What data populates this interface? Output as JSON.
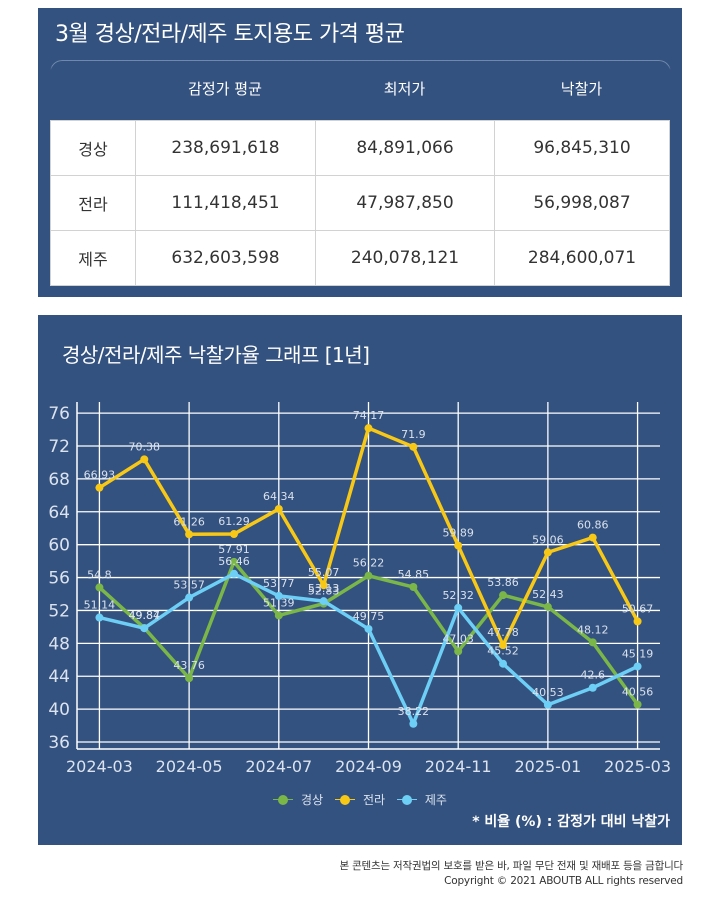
{
  "price_card": {
    "title": "3월 경상/전라/제주 토지용도 가격 평균",
    "columns": [
      "감정가 평균",
      "최저가",
      "낙찰가"
    ],
    "rows": [
      {
        "region": "경상",
        "appraisal_avg": "238,691,618",
        "minimum": "84,891,066",
        "winning_bid": "96,845,310"
      },
      {
        "region": "전라",
        "appraisal_avg": "111,418,451",
        "minimum": "47,987,850",
        "winning_bid": "56,998,087"
      },
      {
        "region": "제주",
        "appraisal_avg": "632,603,598",
        "minimum": "240,078,121",
        "winning_bid": "284,600,071"
      }
    ]
  },
  "chart_card": {
    "title": "경상/전라/제주 낙찰가율 그래프 [1년]",
    "note": "* 비율 (%) : 감정가 대비 낙찰가"
  },
  "colors": {
    "background": "#34527f",
    "경상": "#7ab648",
    "전라": "#f7c815",
    "제주": "#6dcff6"
  },
  "chart_data": {
    "type": "line",
    "title": "경상/전라/제주 낙찰가율 그래프 [1년]",
    "xlabel": "",
    "ylabel": "",
    "x": [
      "2024-03",
      "2024-04",
      "2024-05",
      "2024-06",
      "2024-07",
      "2024-08",
      "2024-09",
      "2024-10",
      "2024-11",
      "2024-12",
      "2025-01",
      "2025-02",
      "2025-03"
    ],
    "x_tick_labels": [
      "2024-03",
      "2024-05",
      "2024-07",
      "2024-09",
      "2024-11",
      "2025-01",
      "2025-03"
    ],
    "y_ticks": [
      36,
      40,
      44,
      48,
      52,
      56,
      60,
      64,
      68,
      72,
      76
    ],
    "ylim": [
      35.15,
      77.35
    ],
    "grid": true,
    "legend_position": "bottom-center",
    "series": [
      {
        "name": "경상",
        "color": "#7ab648",
        "values": [
          54.8,
          49.87,
          43.76,
          57.91,
          51.39,
          52.83,
          56.22,
          54.85,
          47.03,
          53.86,
          52.43,
          48.12,
          40.56
        ]
      },
      {
        "name": "전라",
        "color": "#f7c815",
        "values": [
          66.93,
          70.38,
          61.26,
          61.29,
          64.34,
          55.07,
          74.17,
          71.9,
          59.89,
          47.78,
          59.06,
          60.86,
          50.67
        ]
      },
      {
        "name": "제주",
        "color": "#6dcff6",
        "values": [
          51.14,
          49.84,
          53.57,
          56.46,
          53.77,
          53.13,
          49.75,
          38.22,
          52.32,
          45.52,
          40.53,
          42.6,
          45.19
        ]
      }
    ]
  },
  "footer": {
    "line1": "본 콘텐츠는 저작권법의 보호를 받은 바, 파일 무단 전재 및 재배포 등을 금합니다",
    "line2": "Copyright © 2021 ABOUTB ALL rights reserved"
  }
}
